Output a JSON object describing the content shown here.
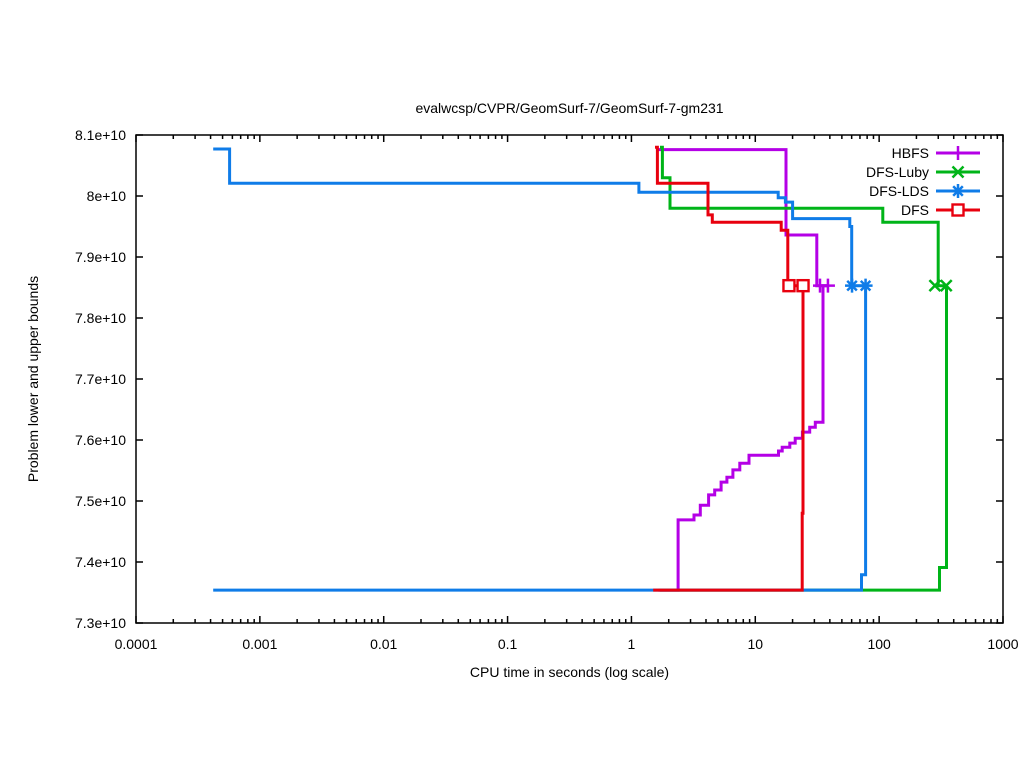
{
  "chart_data": {
    "type": "line",
    "subtype": "step-bounds",
    "title": "evalwcsp/CVPR/GeomSurf-7/GeomSurf-7-gm231",
    "xlabel": "CPU time in seconds (log scale)",
    "ylabel": "Problem lower and upper bounds",
    "x_scale": "log",
    "xlim": [
      0.0001,
      1000
    ],
    "ylim": [
      73000000000.0,
      81000000000.0
    ],
    "grid": false,
    "legend_position": "top-right-inside",
    "optimum_value": 78530000000.0,
    "initial_lower_bound": 73540000000.0,
    "x_ticks": [
      {
        "v": 0.0001,
        "label": "0.0001"
      },
      {
        "v": 0.001,
        "label": "0.001"
      },
      {
        "v": 0.01,
        "label": "0.01"
      },
      {
        "v": 0.1,
        "label": "0.1"
      },
      {
        "v": 1,
        "label": "1"
      },
      {
        "v": 10,
        "label": "10"
      },
      {
        "v": 100,
        "label": "100"
      },
      {
        "v": 1000,
        "label": "1000"
      }
    ],
    "y_ticks": [
      {
        "v": 73000000000.0,
        "label": "7.3e+10"
      },
      {
        "v": 74000000000.0,
        "label": "7.4e+10"
      },
      {
        "v": 75000000000.0,
        "label": "7.5e+10"
      },
      {
        "v": 76000000000.0,
        "label": "7.6e+10"
      },
      {
        "v": 77000000000.0,
        "label": "7.7e+10"
      },
      {
        "v": 78000000000.0,
        "label": "7.8e+10"
      },
      {
        "v": 79000000000.0,
        "label": "7.9e+10"
      },
      {
        "v": 80000000000.0,
        "label": "8e+10"
      },
      {
        "v": 81000000000.0,
        "label": "8.1e+10"
      }
    ],
    "series": [
      {
        "name": "HBFS",
        "color": "#b400e6",
        "marker": "plus",
        "upper": [
          [
            1.65,
            80760000000.0
          ],
          [
            17.7,
            80760000000.0
          ],
          [
            17.7,
            79360000000.0
          ],
          [
            31.4,
            79360000000.0
          ],
          [
            31.4,
            78530000000.0
          ],
          [
            38.6,
            78530000000.0
          ]
        ],
        "lower": [
          [
            1.65,
            73540000000.0
          ],
          [
            2.38,
            73540000000.0
          ],
          [
            2.38,
            74690000000.0
          ],
          [
            3.2,
            74690000000.0
          ],
          [
            3.2,
            74770000000.0
          ],
          [
            3.6,
            74770000000.0
          ],
          [
            3.6,
            74930000000.0
          ],
          [
            4.2,
            74930000000.0
          ],
          [
            4.2,
            75100000000.0
          ],
          [
            4.7,
            75100000000.0
          ],
          [
            4.7,
            75180000000.0
          ],
          [
            5.3,
            75180000000.0
          ],
          [
            5.3,
            75310000000.0
          ],
          [
            5.9,
            75310000000.0
          ],
          [
            5.9,
            75390000000.0
          ],
          [
            6.6,
            75390000000.0
          ],
          [
            6.6,
            75510000000.0
          ],
          [
            7.5,
            75510000000.0
          ],
          [
            7.5,
            75620000000.0
          ],
          [
            8.9,
            75620000000.0
          ],
          [
            8.9,
            75750000000.0
          ],
          [
            15.4,
            75750000000.0
          ],
          [
            15.4,
            75820000000.0
          ],
          [
            16.5,
            75820000000.0
          ],
          [
            16.5,
            75880000000.0
          ],
          [
            19,
            75880000000.0
          ],
          [
            19,
            75950000000.0
          ],
          [
            21,
            75950000000.0
          ],
          [
            21,
            76030000000.0
          ],
          [
            24,
            76030000000.0
          ],
          [
            24,
            76130000000.0
          ],
          [
            27.5,
            76130000000.0
          ],
          [
            27.5,
            76210000000.0
          ],
          [
            30.5,
            76210000000.0
          ],
          [
            30.5,
            76290000000.0
          ],
          [
            35.2,
            76290000000.0
          ],
          [
            35.2,
            78530000000.0
          ],
          [
            38.6,
            78530000000.0
          ]
        ],
        "markers": [
          [
            33.3,
            78530000000.0
          ],
          [
            38.6,
            78530000000.0
          ]
        ]
      },
      {
        "name": "DFS-Luby",
        "color": "#00b418",
        "marker": "cross",
        "upper": [
          [
            1.7,
            80800000000.0
          ],
          [
            1.78,
            80800000000.0
          ],
          [
            1.78,
            80300000000.0
          ],
          [
            2.05,
            80300000000.0
          ],
          [
            2.05,
            79800000000.0
          ],
          [
            107,
            79800000000.0
          ],
          [
            107,
            79570000000.0
          ],
          [
            300,
            79570000000.0
          ],
          [
            300,
            78530000000.0
          ],
          [
            352,
            78530000000.0
          ]
        ],
        "lower": [
          [
            1.7,
            73540000000.0
          ],
          [
            307,
            73540000000.0
          ],
          [
            307,
            73910000000.0
          ],
          [
            350,
            73910000000.0
          ],
          [
            350,
            78530000000.0
          ],
          [
            352,
            78530000000.0
          ]
        ],
        "markers": [
          [
            282,
            78530000000.0
          ],
          [
            348,
            78530000000.0
          ]
        ]
      },
      {
        "name": "DFS-LDS",
        "color": "#0f7ce8",
        "marker": "asterisk",
        "upper": [
          [
            0.00042,
            80770000000.0
          ],
          [
            0.00057,
            80770000000.0
          ],
          [
            0.00057,
            80210000000.0
          ],
          [
            1.15,
            80210000000.0
          ],
          [
            1.15,
            80060000000.0
          ],
          [
            15.3,
            80060000000.0
          ],
          [
            15.3,
            79970000000.0
          ],
          [
            17.5,
            79970000000.0
          ],
          [
            17.5,
            79900000000.0
          ],
          [
            20,
            79900000000.0
          ],
          [
            20,
            79630000000.0
          ],
          [
            58,
            79630000000.0
          ],
          [
            58,
            79500000000.0
          ],
          [
            60,
            79500000000.0
          ],
          [
            60,
            78530000000.0
          ],
          [
            77.7,
            78530000000.0
          ]
        ],
        "lower": [
          [
            0.00042,
            73540000000.0
          ],
          [
            72,
            73540000000.0
          ],
          [
            72,
            73790000000.0
          ],
          [
            77.7,
            73790000000.0
          ],
          [
            77.7,
            78530000000.0
          ]
        ],
        "markers": [
          [
            60.4,
            78530000000.0
          ],
          [
            77.7,
            78530000000.0
          ]
        ]
      },
      {
        "name": "DFS",
        "color": "#e8000e",
        "marker": "square",
        "upper": [
          [
            1.55,
            80800000000.0
          ],
          [
            1.62,
            80800000000.0
          ],
          [
            1.62,
            80210000000.0
          ],
          [
            4.15,
            80210000000.0
          ],
          [
            4.15,
            79690000000.0
          ],
          [
            4.5,
            79690000000.0
          ],
          [
            4.5,
            79570000000.0
          ],
          [
            16.2,
            79570000000.0
          ],
          [
            16.2,
            79440000000.0
          ],
          [
            18.3,
            79440000000.0
          ],
          [
            18.3,
            78530000000.0
          ],
          [
            24.3,
            78530000000.0
          ]
        ],
        "lower": [
          [
            1.5,
            73540000000.0
          ],
          [
            23.9,
            73540000000.0
          ],
          [
            23.9,
            74800000000.0
          ],
          [
            24.3,
            74800000000.0
          ],
          [
            24.3,
            78530000000.0
          ]
        ],
        "markers": [
          [
            18.7,
            78530000000.0
          ],
          [
            24.3,
            78530000000.0
          ]
        ]
      }
    ]
  }
}
